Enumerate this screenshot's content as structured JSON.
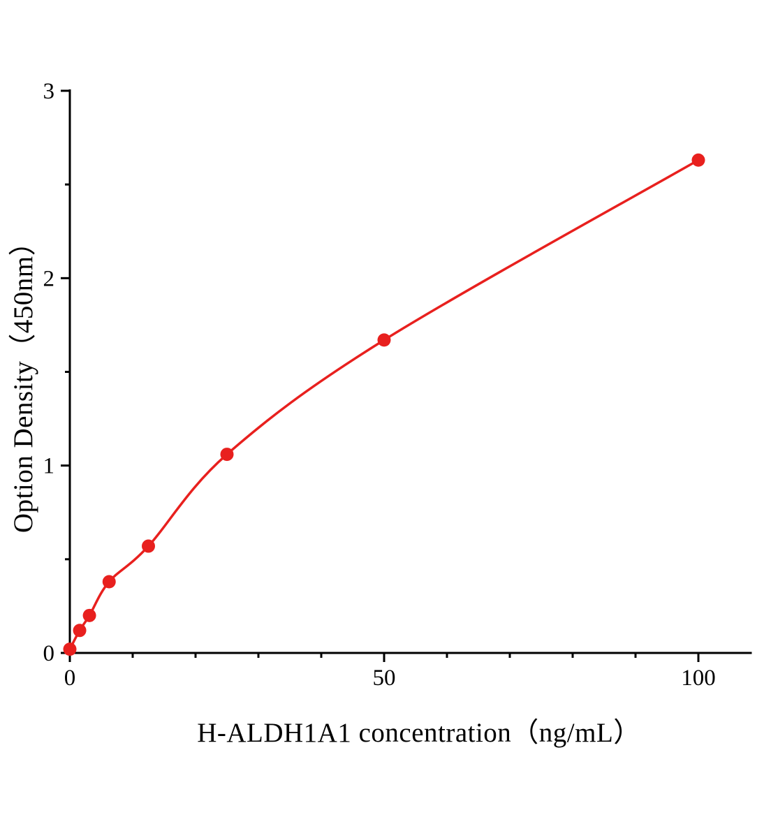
{
  "chart_data": {
    "type": "scatter-line",
    "title": "",
    "xlabel": "H-ALDH1A1 concentration（ng/mL）",
    "ylabel": "Option Density（450nm）",
    "x": [
      0,
      1.56,
      3.12,
      6.25,
      12.5,
      25,
      50,
      100
    ],
    "y": [
      0.02,
      0.12,
      0.2,
      0.38,
      0.57,
      1.06,
      1.67,
      2.63
    ],
    "xlim": [
      0,
      108.5
    ],
    "ylim": [
      0,
      3
    ],
    "x_major_ticks": [
      0,
      50,
      100
    ],
    "x_minor_step": 10,
    "y_major_ticks": [
      0,
      1,
      2,
      3
    ],
    "y_minor_step": 0.5,
    "grid": "off",
    "legend": "none",
    "line_color": "#e8201e",
    "marker_color": "#e8201e",
    "axis_color": "#000000",
    "background": "#ffffff"
  }
}
